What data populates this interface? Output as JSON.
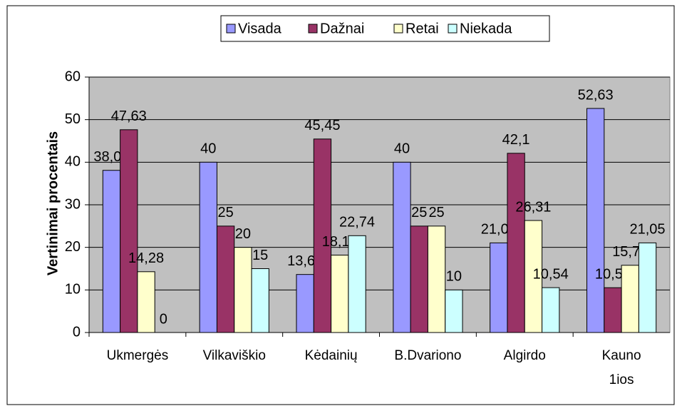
{
  "chart_data": {
    "type": "bar",
    "y_label": "Vertinimai procentais",
    "categories": [
      "Ukmergės",
      "Vilkaviškio",
      "Kėdainių",
      "B.Dvariono",
      "Algirdo",
      "Kauno 1ios"
    ],
    "series": [
      {
        "name": "Visada",
        "color": "#9999ff",
        "values": [
          38.09,
          40,
          13.63,
          40,
          21.05,
          52.63
        ],
        "value_labels": [
          "38,09",
          "40",
          "13,63",
          "40",
          "21,05",
          "52,63"
        ]
      },
      {
        "name": "Dažnai",
        "color": "#993366",
        "values": [
          47.63,
          25,
          45.45,
          25,
          42.1,
          10.53
        ],
        "value_labels": [
          "47,63",
          "25",
          "45,45",
          "25",
          "42,1",
          "10,53"
        ]
      },
      {
        "name": "Retai",
        "color": "#ffffcc",
        "values": [
          14.28,
          20,
          18.18,
          25,
          26.31,
          15.79
        ],
        "value_labels": [
          "14,28",
          "20",
          "18,18",
          "25",
          "26,31",
          "15,79"
        ]
      },
      {
        "name": "Niekada",
        "color": "#ccffff",
        "values": [
          0,
          15,
          22.74,
          10,
          10.54,
          21.05
        ],
        "value_labels": [
          "0",
          "15",
          "22,74",
          "10",
          "10,54",
          "21,05"
        ]
      }
    ],
    "ylim": [
      0,
      60
    ],
    "yticks": [
      0,
      10,
      20,
      30,
      40,
      50,
      60
    ],
    "grid": true,
    "plot_background": "#c0c0c0",
    "legend": "top"
  }
}
